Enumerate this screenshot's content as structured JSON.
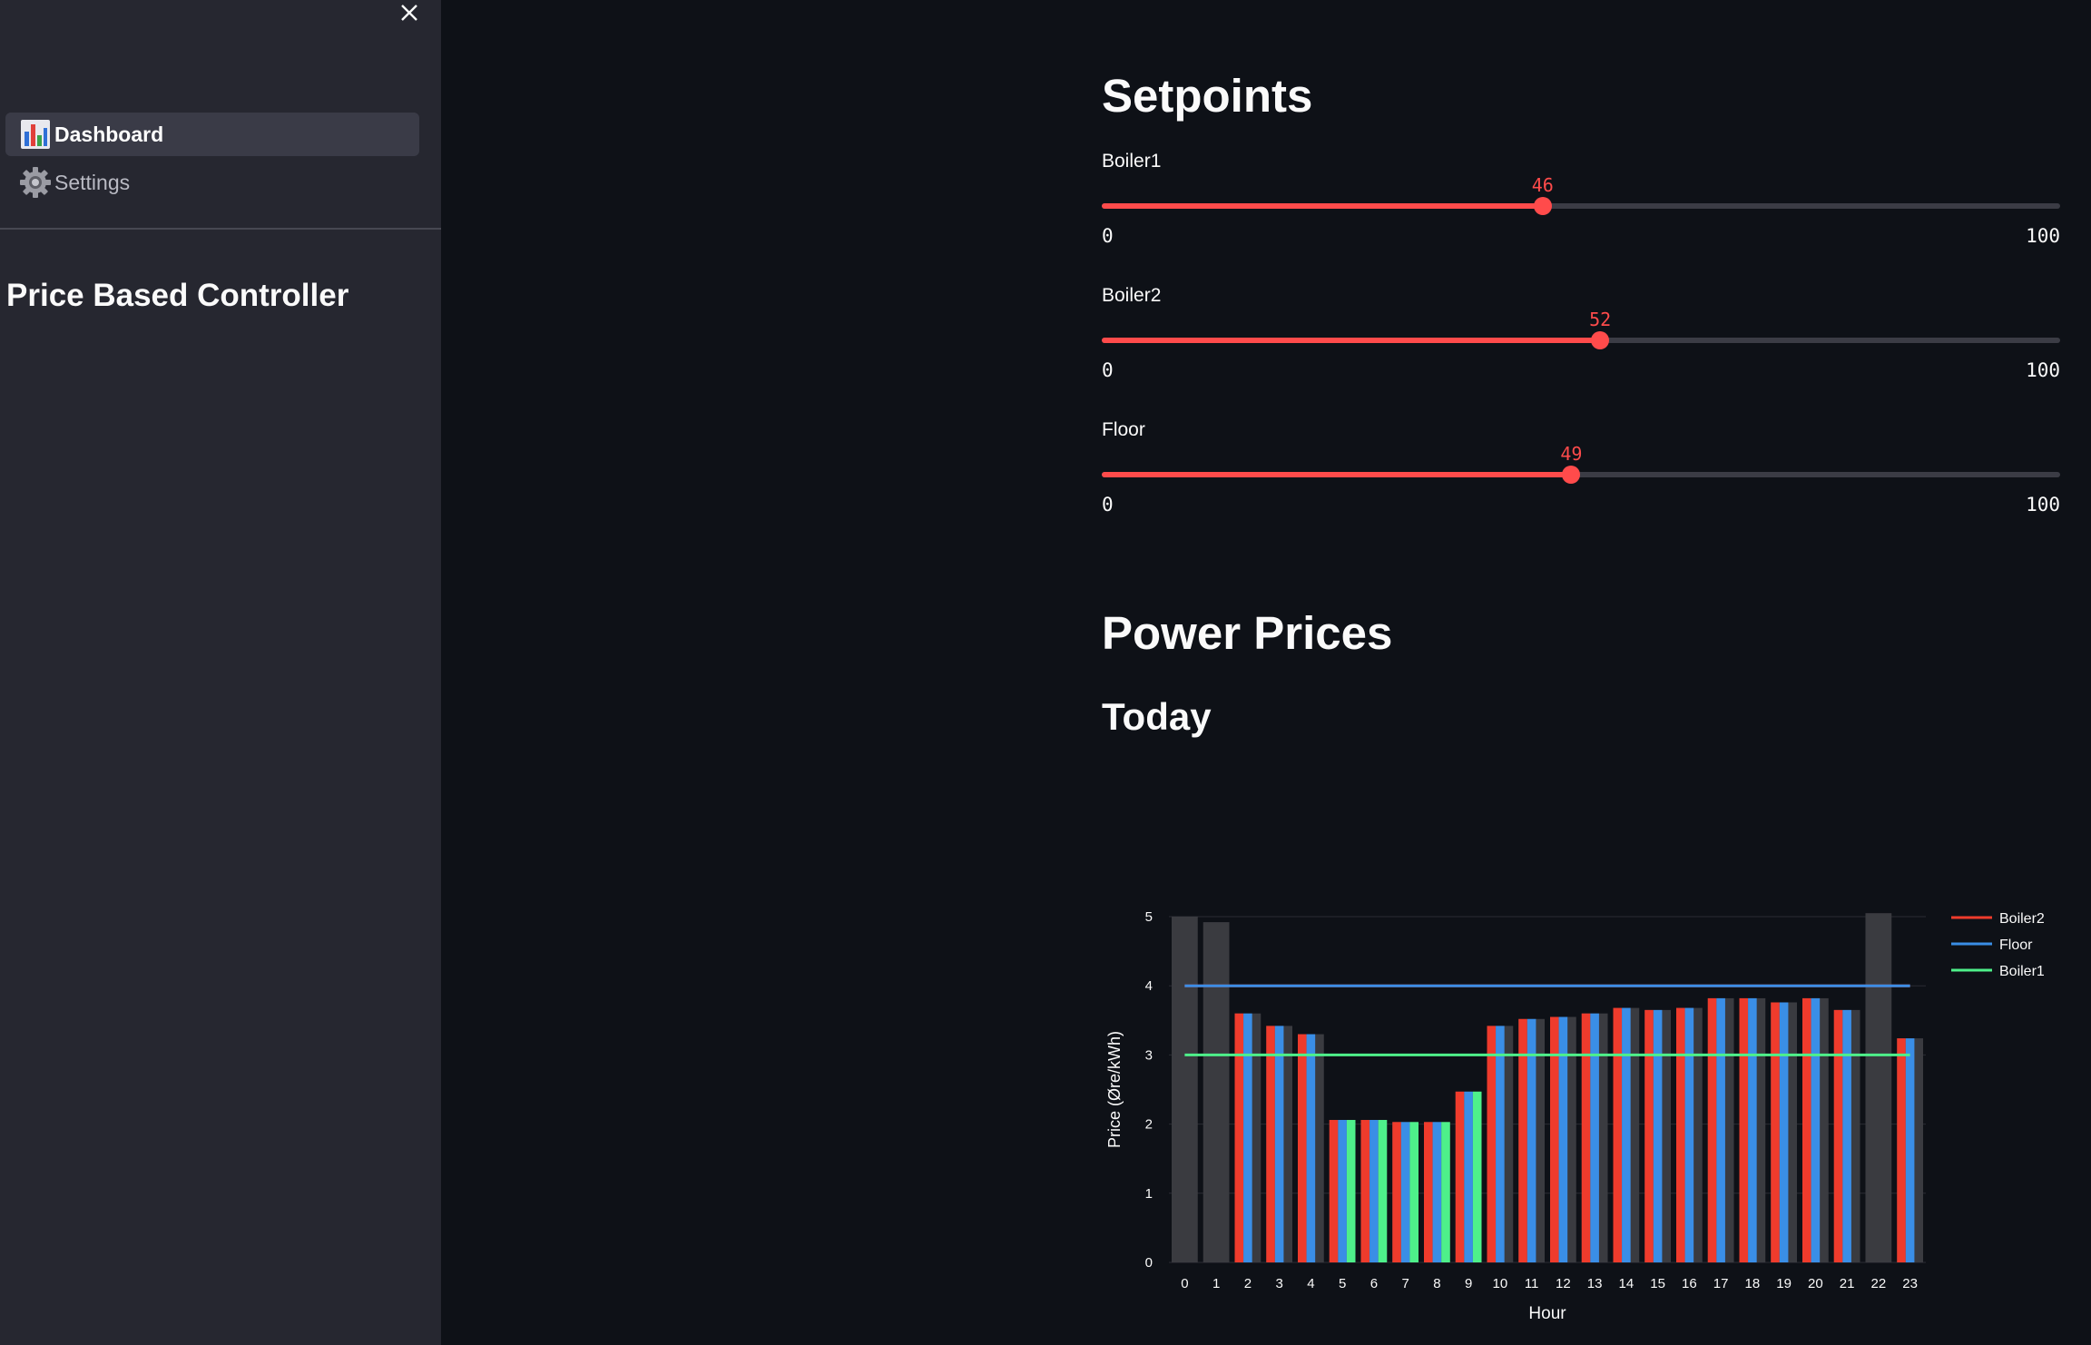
{
  "sidebar": {
    "close_icon": "close-icon",
    "nav": [
      {
        "label": "Dashboard",
        "icon": "bar-chart-icon",
        "active": true
      },
      {
        "label": "Settings",
        "icon": "gear-icon",
        "active": false
      }
    ],
    "title": "Price Based Controller"
  },
  "setpoints": {
    "heading": "Setpoints",
    "sliders": [
      {
        "label": "Boiler1",
        "value": 46,
        "min": 0,
        "max": 100
      },
      {
        "label": "Boiler2",
        "value": 52,
        "min": 0,
        "max": 100
      },
      {
        "label": "Floor",
        "value": 49,
        "min": 0,
        "max": 100
      }
    ]
  },
  "power_prices": {
    "heading": "Power Prices",
    "subheading": "Today"
  },
  "colors": {
    "accent": "#ff4b4b",
    "boiler2": "#ef3b2c",
    "floor": "#3a8ee6",
    "boiler1": "#4ef08a",
    "inactive_bar": "#3a3b40"
  },
  "chart_data": {
    "type": "bar",
    "xlabel": "Hour",
    "ylabel": "Price (Øre/kWh)",
    "ylim": [
      0,
      5
    ],
    "yticks": [
      0,
      1,
      2,
      3,
      4,
      5
    ],
    "categories": [
      "0",
      "1",
      "2",
      "3",
      "4",
      "5",
      "6",
      "7",
      "8",
      "9",
      "10",
      "11",
      "12",
      "13",
      "14",
      "15",
      "16",
      "17",
      "18",
      "19",
      "20",
      "21",
      "22",
      "23"
    ],
    "values": [
      5.0,
      4.92,
      3.6,
      3.42,
      3.3,
      2.06,
      2.06,
      2.03,
      2.03,
      2.47,
      3.42,
      3.52,
      3.55,
      3.6,
      3.68,
      3.65,
      3.68,
      3.82,
      3.82,
      3.76,
      3.82,
      3.65,
      5.05,
      3.24
    ],
    "series": [
      {
        "name": "Boiler2",
        "threshold": 4.0
      },
      {
        "name": "Floor",
        "threshold": 4.0
      },
      {
        "name": "Boiler1",
        "threshold": 3.0
      }
    ],
    "legend_position": "right",
    "grid": true
  }
}
